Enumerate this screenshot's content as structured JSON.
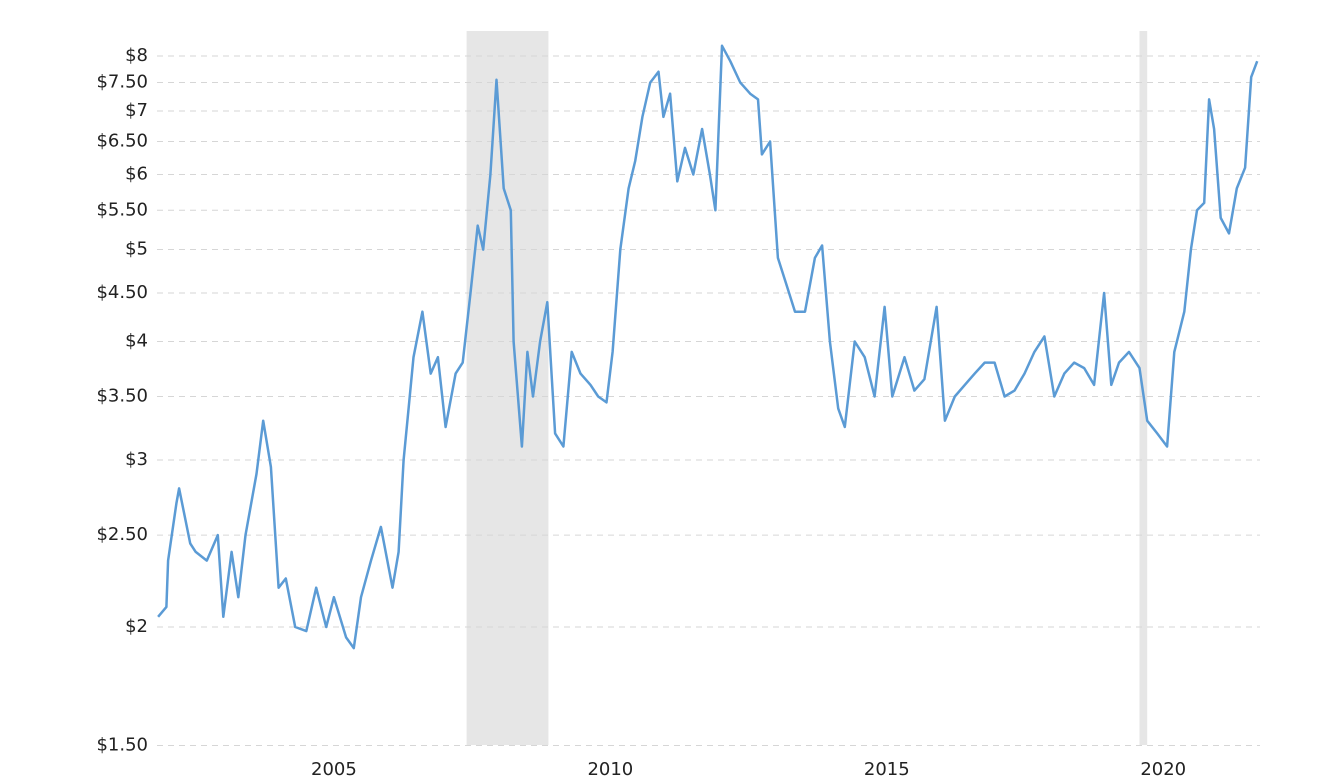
{
  "chart_data": {
    "type": "line",
    "x": [
      2001.82,
      2001.97,
      2002.0,
      2002.15,
      2002.2,
      2002.4,
      2002.5,
      2002.7,
      2002.9,
      2003.0,
      2003.15,
      2003.27,
      2003.4,
      2003.6,
      2003.72,
      2003.86,
      2004.0,
      2004.13,
      2004.3,
      2004.5,
      2004.68,
      2004.86,
      2005.0,
      2005.22,
      2005.36,
      2005.49,
      2005.67,
      2005.85,
      2006.06,
      2006.17,
      2006.26,
      2006.35,
      2006.44,
      2006.6,
      2006.75,
      2006.88,
      2007.02,
      2007.2,
      2007.33,
      2007.47,
      2007.6,
      2007.7,
      2007.83,
      2007.94,
      2008.07,
      2008.2,
      2008.25,
      2008.4,
      2008.5,
      2008.6,
      2008.73,
      2008.86,
      2009.0,
      2009.15,
      2009.3,
      2009.46,
      2009.64,
      2009.78,
      2009.93,
      2010.04,
      2010.18,
      2010.33,
      2010.45,
      2010.58,
      2010.72,
      2010.87,
      2010.96,
      2011.08,
      2011.21,
      2011.35,
      2011.5,
      2011.66,
      2011.8,
      2011.9,
      2012.02,
      2012.17,
      2012.35,
      2012.53,
      2012.67,
      2012.74,
      2012.89,
      2013.03,
      2013.18,
      2013.34,
      2013.52,
      2013.7,
      2013.83,
      2013.97,
      2014.12,
      2014.24,
      2014.42,
      2014.6,
      2014.78,
      2014.96,
      2015.1,
      2015.32,
      2015.5,
      2015.68,
      2015.9,
      2016.05,
      2016.23,
      2016.41,
      2016.59,
      2016.77,
      2016.95,
      2017.13,
      2017.31,
      2017.49,
      2017.67,
      2017.85,
      2018.03,
      2018.21,
      2018.39,
      2018.57,
      2018.75,
      2018.93,
      2019.06,
      2019.2,
      2019.38,
      2019.57,
      2019.71,
      2019.89,
      2020.07,
      2020.2,
      2020.38,
      2020.5,
      2020.61,
      2020.74,
      2020.83,
      2020.92,
      2021.04,
      2021.19,
      2021.33,
      2021.48,
      2021.59,
      2021.7
    ],
    "series": [
      {
        "color": "#5b9bd5",
        "values": [
          2.05,
          2.1,
          2.35,
          2.7,
          2.8,
          2.45,
          2.4,
          2.35,
          2.5,
          2.05,
          2.4,
          2.15,
          2.5,
          2.9,
          3.3,
          2.95,
          2.2,
          2.25,
          2.0,
          1.98,
          2.2,
          2.0,
          2.15,
          1.95,
          1.9,
          2.15,
          2.35,
          2.55,
          2.2,
          2.4,
          3.0,
          3.4,
          3.85,
          4.3,
          3.7,
          3.85,
          3.25,
          3.7,
          3.8,
          4.5,
          5.3,
          5.0,
          6.0,
          7.55,
          5.8,
          5.5,
          4.0,
          3.1,
          3.9,
          3.5,
          4.0,
          4.4,
          3.2,
          3.1,
          3.9,
          3.7,
          3.6,
          3.5,
          3.45,
          3.9,
          5.0,
          5.8,
          6.2,
          6.9,
          7.5,
          7.7,
          6.9,
          7.3,
          5.9,
          6.4,
          6.0,
          6.7,
          6.0,
          5.5,
          8.2,
          7.9,
          7.5,
          7.3,
          7.2,
          6.3,
          6.5,
          4.9,
          4.6,
          4.3,
          4.3,
          4.9,
          5.05,
          4.0,
          3.4,
          3.25,
          4.0,
          3.85,
          3.5,
          4.35,
          3.5,
          3.85,
          3.55,
          3.65,
          4.35,
          3.3,
          3.5,
          3.6,
          3.7,
          3.8,
          3.8,
          3.5,
          3.55,
          3.7,
          3.9,
          4.05,
          3.5,
          3.7,
          3.8,
          3.75,
          3.6,
          4.5,
          3.6,
          3.8,
          3.9,
          3.75,
          3.3,
          3.2,
          3.1,
          3.9,
          4.3,
          5.0,
          5.5,
          5.6,
          7.2,
          6.7,
          5.4,
          5.2,
          5.8,
          6.1,
          7.6,
          7.9
        ]
      }
    ],
    "shaded_regions": [
      [
        2007.4,
        2008.88
      ],
      [
        2019.57,
        2019.71
      ]
    ],
    "shade_color": "#e6e6e6",
    "xlim": [
      2001.8,
      2021.75
    ],
    "xticks": [
      2005,
      2010,
      2015,
      2020
    ],
    "ylim": [
      1.48,
      8.5
    ],
    "log_y": true,
    "yticks": [
      {
        "value": 1.5,
        "label": "$1.50"
      },
      {
        "value": 2,
        "label": "$2"
      },
      {
        "value": 2.5,
        "label": "$2.50"
      },
      {
        "value": 3,
        "label": "$3"
      },
      {
        "value": 3.5,
        "label": "$3.50"
      },
      {
        "value": 4,
        "label": "$4"
      },
      {
        "value": 4.5,
        "label": "$4.50"
      },
      {
        "value": 5,
        "label": "$5"
      },
      {
        "value": 5.5,
        "label": "$5.50"
      },
      {
        "value": 6,
        "label": "$6"
      },
      {
        "value": 6.5,
        "label": "$6.50"
      },
      {
        "value": 7,
        "label": "$7"
      },
      {
        "value": 7.5,
        "label": "$7.50"
      },
      {
        "value": 8,
        "label": "$8"
      }
    ],
    "grid": true
  }
}
